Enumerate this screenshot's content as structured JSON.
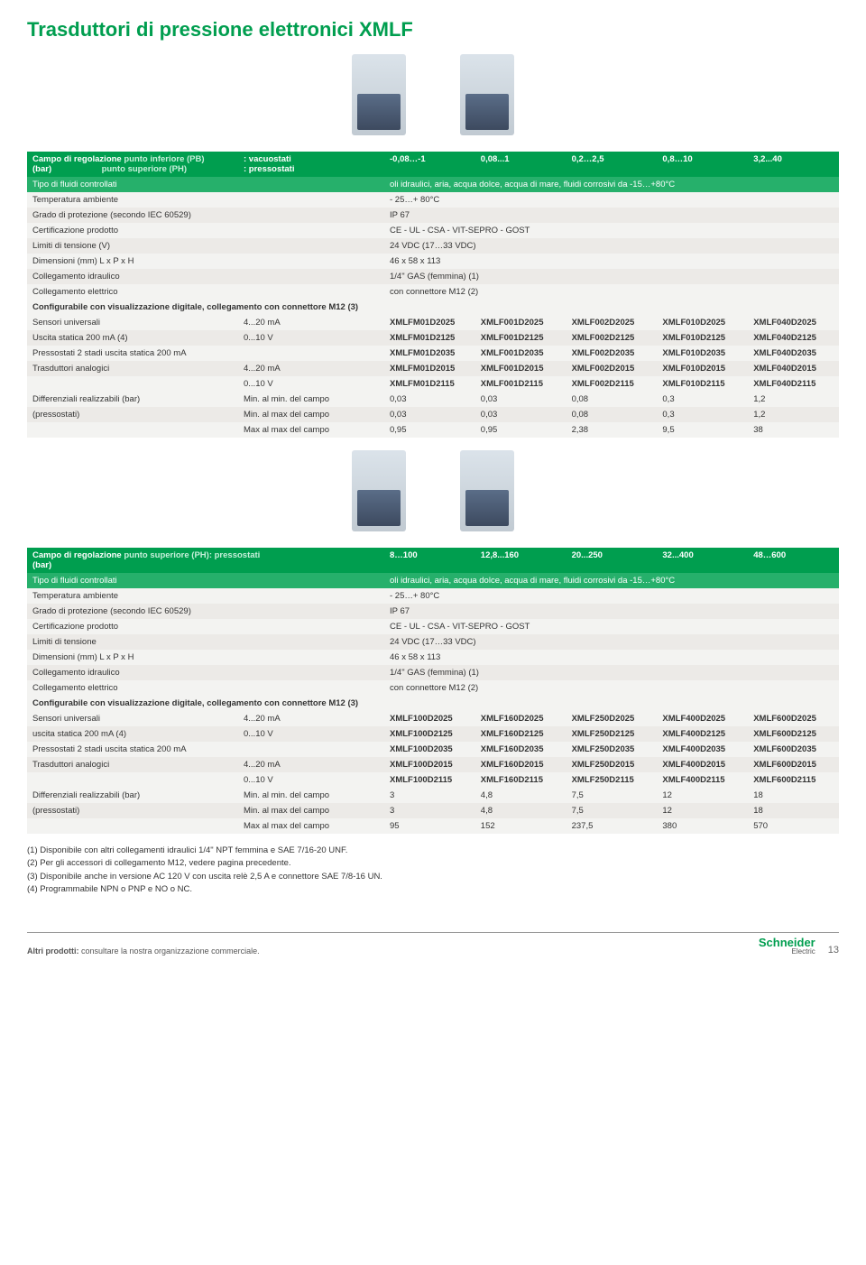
{
  "title": "Trasduttori di pressione elettronici XMLF",
  "table1": {
    "header": {
      "label1a": "Campo di regolazione",
      "label1b": "(bar)",
      "label2a": "punto inferiore (PB)",
      "label2b": "punto superiore (PH)",
      "label3a": ": vacuostati",
      "label3b": ": pressostati",
      "ranges": [
        "-0,08…-1",
        "0,08...1",
        "0,2…2,5",
        "0,8…10",
        "3,2...40"
      ]
    },
    "fluidi_label": "Tipo di fluidi controllati",
    "fluidi_val": "oli idraulici, aria, acqua dolce, acqua di mare, fluidi corrosivi da -15…+80°C",
    "rows": [
      {
        "l": "Temperatura ambiente",
        "v": "- 25…+ 80°C"
      },
      {
        "l": "Grado di protezione (secondo IEC 60529)",
        "v": "IP 67"
      },
      {
        "l": "Certificazione prodotto",
        "v": "CE - UL - CSA - VIT-SEPRO - GOST"
      },
      {
        "l": "Limiti di tensione (V)",
        "v": "24 VDC   (17…33 VDC)"
      },
      {
        "l": "Dimensioni (mm) L x P x H",
        "v": "46 x 58 x 113"
      },
      {
        "l": "Collegamento idraulico",
        "v": "1/4\" GAS (femmina) (1)"
      },
      {
        "l": "Collegamento elettrico",
        "v": "con connettore M12 (2)"
      }
    ],
    "config": "Configurabile con visualizzazione digitale, collegamento con connettore M12 (3)",
    "matrix": [
      {
        "l": "Sensori universali",
        "sub": "4...20 mA",
        "c": [
          "XMLFM01D2025",
          "XMLF001D2025",
          "XMLF002D2025",
          "XMLF010D2025",
          "XMLF040D2025"
        ]
      },
      {
        "l": "Uscita statica 200 mA (4)",
        "sub": "0...10 V",
        "c": [
          "XMLFM01D2125",
          "XMLF001D2125",
          "XMLF002D2125",
          "XMLF010D2125",
          "XMLF040D2125"
        ]
      },
      {
        "l": "Pressostati 2 stadi uscita statica 200 mA",
        "sub": "",
        "c": [
          "XMLFM01D2035",
          "XMLF001D2035",
          "XMLF002D2035",
          "XMLF010D2035",
          "XMLF040D2035"
        ]
      },
      {
        "l": "Trasduttori analogici",
        "sub": "4...20 mA",
        "c": [
          "XMLFM01D2015",
          "XMLF001D2015",
          "XMLF002D2015",
          "XMLF010D2015",
          "XMLF040D2015"
        ]
      },
      {
        "l": "",
        "sub": "0...10 V",
        "c": [
          "XMLFM01D2115",
          "XMLF001D2115",
          "XMLF002D2115",
          "XMLF010D2115",
          "XMLF040D2115"
        ]
      }
    ],
    "diff": [
      {
        "l": "Differenziali realizzabili (bar)",
        "sub": "Min. al min. del campo",
        "c": [
          "0,03",
          "0,03",
          "0,08",
          "0,3",
          "1,2"
        ]
      },
      {
        "l": "(pressostati)",
        "sub": "Min. al max del campo",
        "c": [
          "0,03",
          "0,03",
          "0,08",
          "0,3",
          "1,2"
        ]
      },
      {
        "l": "",
        "sub": "Max al max del campo",
        "c": [
          "0,95",
          "0,95",
          "2,38",
          "9,5",
          "38"
        ]
      }
    ]
  },
  "table2": {
    "header": {
      "label1a": "Campo di regolazione",
      "label1b": "(bar)",
      "label2": "punto superiore (PH): pressostati",
      "ranges": [
        "8…100",
        "12,8...160",
        "20...250",
        "32...400",
        "48…600"
      ]
    },
    "fluidi_label": "Tipo di fluidi controllati",
    "fluidi_val": "oli idraulici, aria, acqua dolce, acqua di mare, fluidi corrosivi da -15…+80°C",
    "rows": [
      {
        "l": "Temperatura ambiente",
        "v": "- 25…+ 80°C"
      },
      {
        "l": "Grado di protezione (secondo IEC 60529)",
        "v": "IP 67"
      },
      {
        "l": "Certificazione prodotto",
        "v": "CE - UL - CSA - VIT-SEPRO - GOST"
      },
      {
        "l": "Limiti di tensione",
        "v": "24 VDC   (17…33 VDC)"
      },
      {
        "l": "Dimensioni (mm) L x P x H",
        "v": "46 x 58 x 113"
      },
      {
        "l": "Collegamento idraulico",
        "v": "1/4\" GAS (femmina) (1)"
      },
      {
        "l": "Collegamento elettrico",
        "v": "con connettore M12 (2)"
      }
    ],
    "config": "Configurabile con visualizzazione digitale, collegamento con connettore M12 (3)",
    "matrix": [
      {
        "l": "Sensori universali",
        "sub": "4...20 mA",
        "c": [
          "XMLF100D2025",
          "XMLF160D2025",
          "XMLF250D2025",
          "XMLF400D2025",
          "XMLF600D2025"
        ]
      },
      {
        "l": "uscita statica 200 mA (4)",
        "sub": "0...10 V",
        "c": [
          "XMLF100D2125",
          "XMLF160D2125",
          "XMLF250D2125",
          "XMLF400D2125",
          "XMLF600D2125"
        ]
      },
      {
        "l": "Pressostati 2 stadi uscita statica 200 mA",
        "sub": "",
        "c": [
          "XMLF100D2035",
          "XMLF160D2035",
          "XMLF250D2035",
          "XMLF400D2035",
          "XMLF600D2035"
        ]
      },
      {
        "l": "Trasduttori analogici",
        "sub": "4...20 mA",
        "c": [
          "XMLF100D2015",
          "XMLF160D2015",
          "XMLF250D2015",
          "XMLF400D2015",
          "XMLF600D2015"
        ]
      },
      {
        "l": "",
        "sub": "0...10 V",
        "c": [
          "XMLF100D2115",
          "XMLF160D2115",
          "XMLF250D2115",
          "XMLF400D2115",
          "XMLF600D2115"
        ]
      }
    ],
    "diff": [
      {
        "l": "Differenziali realizzabili (bar)",
        "sub": "Min. al min. del campo",
        "c": [
          "3",
          "4,8",
          "7,5",
          "12",
          "18"
        ]
      },
      {
        "l": "(pressostati)",
        "sub": "Min. al max del campo",
        "c": [
          "3",
          "4,8",
          "7,5",
          "12",
          "18"
        ]
      },
      {
        "l": "",
        "sub": "Max al max del campo",
        "c": [
          "95",
          "152",
          "237,5",
          "380",
          "570"
        ]
      }
    ]
  },
  "footnotes": [
    "(1) Disponibile con altri collegamenti idraulici 1/4\" NPT femmina e SAE 7/16-20 UNF.",
    "(2) Per gli accessori di collegamento M12, vedere pagina precedente.",
    "(3) Disponibile anche in versione AC 120 V con uscita relè 2,5 A e connettore SAE 7/8-16 UN.",
    "(4) Programmabile NPN o PNP e NO o NC."
  ],
  "footer": {
    "left_bold": "Altri prodotti:",
    "left_rest": " consultare la nostra organizzazione commerciale.",
    "brand": "Schneider",
    "brand_sub": "Electric",
    "page": "13"
  }
}
